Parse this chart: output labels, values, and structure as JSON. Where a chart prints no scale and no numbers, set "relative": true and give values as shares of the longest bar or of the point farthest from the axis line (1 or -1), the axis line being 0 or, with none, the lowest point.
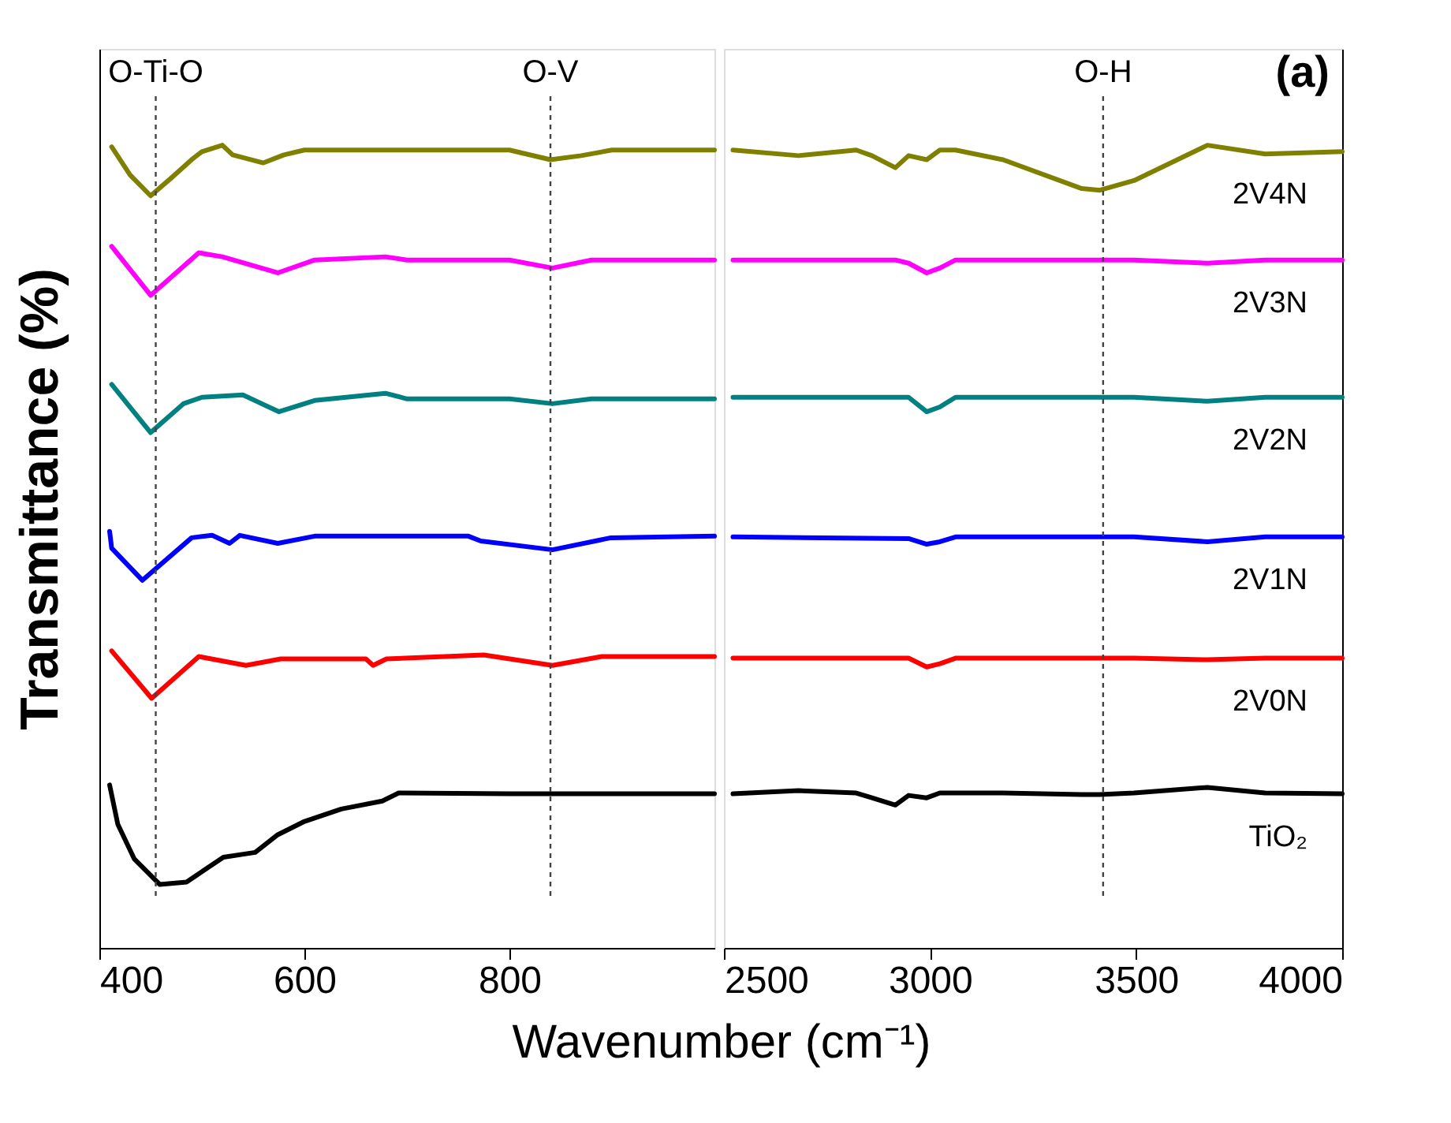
{
  "chart_data": [
    {
      "type": "line",
      "relative": true,
      "ylabel": "Transmittance (%)",
      "xlabel": "Wavenumber (cm⁻¹)",
      "xlim": [
        400,
        1000
      ],
      "xticks": [
        400,
        600,
        800
      ],
      "tick_labels": "x",
      "legend": false,
      "grid": false,
      "line_style": "solid",
      "ref_lines": [
        {
          "axis": "x",
          "value": 455,
          "label": "O-Ti-O",
          "line_style": "dotted"
        },
        {
          "axis": "x",
          "value": 840,
          "label": "O-V",
          "line_style": "dotted"
        }
      ],
      "series": [
        {
          "color": "#808000",
          "x": [
            412,
            430,
            450,
            470,
            490,
            500,
            520,
            530,
            560,
            580,
            600,
            700,
            800,
            840,
            870,
            900,
            1000
          ],
          "values": [
            0.998,
            0.963,
            0.937,
            0.959,
            0.982,
            0.992,
            1,
            0.988,
            0.978,
            0.988,
            0.994,
            0.994,
            0.994,
            0.982,
            0.987,
            0.994,
            0.994
          ]
        },
        {
          "color": "#ff00ff",
          "x": [
            412,
            450,
            497,
            520,
            574,
            610,
            679,
            700,
            800,
            842,
            880,
            1000
          ],
          "values": [
            0.874,
            0.813,
            0.866,
            0.861,
            0.841,
            0.857,
            0.861,
            0.857,
            0.857,
            0.847,
            0.857,
            0.857
          ]
        },
        {
          "color": "#008080",
          "x": [
            412,
            450,
            482,
            500,
            540,
            575,
            610,
            679,
            700,
            800,
            842,
            880,
            1000
          ],
          "values": [
            0.702,
            0.642,
            0.678,
            0.686,
            0.689,
            0.668,
            0.682,
            0.691,
            0.684,
            0.684,
            0.678,
            0.684,
            0.684
          ]
        },
        {
          "color": "#0000ff",
          "x": [
            410,
            412,
            442,
            490,
            510,
            527,
            537,
            574,
            610,
            760,
            772,
            842,
            899,
            1000
          ],
          "values": [
            0.519,
            0.498,
            0.458,
            0.511,
            0.514,
            0.504,
            0.514,
            0.504,
            0.513,
            0.513,
            0.507,
            0.496,
            0.511,
            0.513
          ]
        },
        {
          "color": "#ff0000",
          "x": [
            412,
            451,
            497,
            543,
            577,
            660,
            667,
            680,
            775,
            842,
            890,
            1000
          ],
          "values": [
            0.37,
            0.311,
            0.363,
            0.352,
            0.36,
            0.36,
            0.352,
            0.36,
            0.365,
            0.352,
            0.363,
            0.363
          ]
        },
        {
          "color": "#000000",
          "x": [
            410,
            418,
            434,
            459,
            485,
            521,
            552,
            574,
            599,
            636,
            676,
            692,
            800,
            1000
          ],
          "values": [
            0.203,
            0.154,
            0.111,
            0.079,
            0.082,
            0.113,
            0.119,
            0.141,
            0.157,
            0.173,
            0.183,
            0.193,
            0.192,
            0.192
          ]
        }
      ]
    },
    {
      "type": "line",
      "relative": true,
      "xlim": [
        2500,
        4000
      ],
      "xticks": [
        2500,
        3000,
        3500,
        4000
      ],
      "tick_labels": "x",
      "legend": false,
      "grid": false,
      "line_style": "solid",
      "annotations": [
        "(a)"
      ],
      "ref_lines": [
        {
          "axis": "x",
          "value": 3420,
          "label": "O-H",
          "line_style": "dotted"
        }
      ],
      "series": [
        {
          "name": "2V4N",
          "color": "#808000",
          "x": [
            2522,
            2681,
            2821,
            2859,
            2916,
            2948,
            2992,
            3024,
            3062,
            3177,
            3368,
            3412,
            3495,
            3673,
            3813,
            4000
          ],
          "values": [
            0.994,
            0.987,
            0.994,
            0.987,
            0.972,
            0.987,
            0.982,
            0.994,
            0.994,
            0.982,
            0.946,
            0.944,
            0.956,
            1,
            0.989,
            0.992
          ]
        },
        {
          "name": "2V3N",
          "color": "#ff00ff",
          "x": [
            2522,
            2916,
            2948,
            2992,
            3024,
            3062,
            3495,
            3673,
            3813,
            4000
          ],
          "values": [
            0.857,
            0.857,
            0.853,
            0.841,
            0.847,
            0.857,
            0.857,
            0.853,
            0.857,
            0.857
          ]
        },
        {
          "name": "2V2N",
          "color": "#008080",
          "x": [
            2522,
            2948,
            2992,
            3024,
            3062,
            3495,
            3673,
            3813,
            4000
          ],
          "values": [
            0.686,
            0.686,
            0.668,
            0.674,
            0.686,
            0.686,
            0.681,
            0.686,
            0.686
          ]
        },
        {
          "name": "2V1N",
          "color": "#0000ff",
          "x": [
            2522,
            2948,
            2992,
            3024,
            3062,
            3495,
            3673,
            3813,
            4000
          ],
          "values": [
            0.512,
            0.51,
            0.503,
            0.506,
            0.512,
            0.512,
            0.506,
            0.512,
            0.512
          ]
        },
        {
          "name": "2V0N",
          "color": "#ff0000",
          "x": [
            2522,
            2948,
            2992,
            3024,
            3062,
            3495,
            3673,
            3813,
            4000
          ],
          "values": [
            0.361,
            0.361,
            0.35,
            0.354,
            0.361,
            0.361,
            0.359,
            0.361,
            0.361
          ]
        },
        {
          "name": "TiO₂",
          "color": "#000000",
          "x": [
            2522,
            2681,
            2821,
            2859,
            2916,
            2948,
            2992,
            3024,
            3062,
            3177,
            3368,
            3412,
            3495,
            3673,
            3813,
            4000
          ],
          "values": [
            0.192,
            0.196,
            0.193,
            0.187,
            0.178,
            0.19,
            0.187,
            0.193,
            0.193,
            0.193,
            0.191,
            0.191,
            0.193,
            0.2,
            0.193,
            0.192
          ]
        }
      ]
    }
  ]
}
